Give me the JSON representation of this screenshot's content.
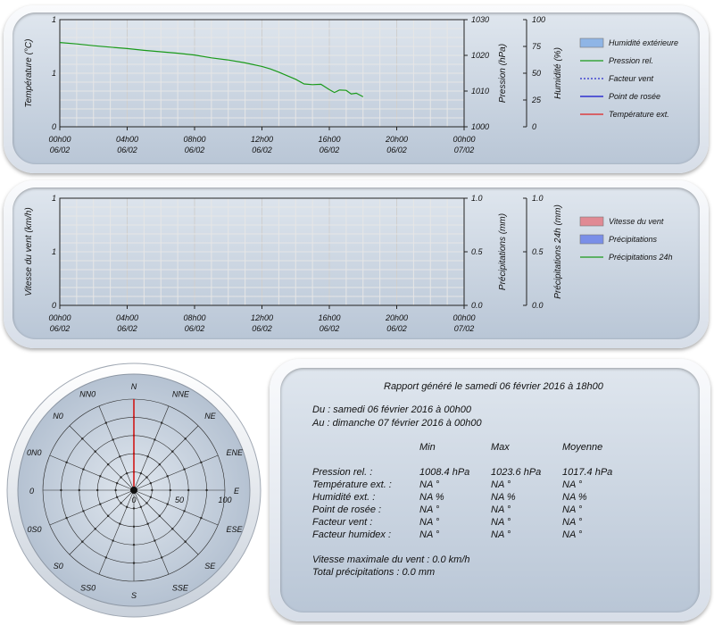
{
  "colors": {
    "humidity": "#8fb5e6",
    "pressure": "#1a9a1a",
    "wind_factor": "#2a2acc",
    "dew_point": "#1010cc",
    "temperature": "#e02020",
    "wind_speed": "#e08a94",
    "precip": "#7a8fe8",
    "precip24": "#1a9a1a",
    "rose_needle": "#d01818"
  },
  "chart_data": [
    {
      "type": "line",
      "x_tick_labels": [
        [
          "00h00",
          "06/02"
        ],
        [
          "04h00",
          "06/02"
        ],
        [
          "08h00",
          "06/02"
        ],
        [
          "12h00",
          "06/02"
        ],
        [
          "16h00",
          "06/02"
        ],
        [
          "20h00",
          "06/02"
        ],
        [
          "00h00",
          "07/02"
        ]
      ],
      "y_left": {
        "label": "Température (°C)",
        "ticks": [
          "1",
          "1",
          "0"
        ]
      },
      "y_mid": {
        "label": "Pression (hPa)",
        "ticks": [
          "1030",
          "1020",
          "1010",
          "1000"
        ],
        "range": [
          1000,
          1030
        ]
      },
      "y_right": {
        "label": "Humidité (%)",
        "ticks": [
          "100",
          "75",
          "50",
          "25",
          "0"
        ]
      },
      "grid": true,
      "legend_position": "right",
      "legend": [
        "Humidité extérieure",
        "Pression rel.",
        "Facteur vent",
        "Point de rosée",
        "Température ext."
      ],
      "series": [
        {
          "name": "Pression rel.",
          "axis": "y_mid",
          "x": [
            0,
            1,
            2,
            3,
            4,
            5,
            6,
            7,
            8,
            9,
            10,
            11,
            12,
            12.5,
            13,
            13.5,
            14,
            14.5,
            15,
            15.5,
            16,
            16.3,
            16.6,
            17,
            17.3,
            17.6,
            18
          ],
          "y": [
            1023.6,
            1023.2,
            1022.7,
            1022.3,
            1021.9,
            1021.4,
            1021.0,
            1020.6,
            1020.1,
            1019.3,
            1018.7,
            1017.9,
            1016.9,
            1016.2,
            1015.3,
            1014.3,
            1013.3,
            1012.0,
            1011.8,
            1011.9,
            1010.4,
            1009.6,
            1010.3,
            1010.2,
            1009.2,
            1009.4,
            1008.4
          ]
        }
      ]
    },
    {
      "type": "bar",
      "x_tick_labels": [
        [
          "00h00",
          "06/02"
        ],
        [
          "04h00",
          "06/02"
        ],
        [
          "08h00",
          "06/02"
        ],
        [
          "12h00",
          "06/02"
        ],
        [
          "16h00",
          "06/02"
        ],
        [
          "20h00",
          "06/02"
        ],
        [
          "00h00",
          "07/02"
        ]
      ],
      "y_left": {
        "label": "Vitesse du vent (km/h)",
        "ticks": [
          "1",
          "1",
          "0"
        ]
      },
      "y_mid": {
        "label": "Précipitations (mm)",
        "ticks": [
          "1.0",
          "0.5",
          "0.0"
        ]
      },
      "y_right": {
        "label": "Précipitations 24h (mm)",
        "ticks": [
          "1.0",
          "0.5",
          "0.0"
        ]
      },
      "grid": true,
      "legend_position": "right",
      "legend": [
        "Vitesse du vent",
        "Précipitations",
        "Précipitations 24h"
      ],
      "series": []
    },
    {
      "type": "radar",
      "directions": [
        "N",
        "NNE",
        "NE",
        "ENE",
        "E",
        "ESE",
        "SE",
        "SSE",
        "S",
        "SS0",
        "S0",
        "0S0",
        "0",
        "0N0",
        "N0",
        "NN0"
      ],
      "radial_ticks": [
        "0",
        "50",
        "100"
      ],
      "series": [
        {
          "direction": "N",
          "value": 100
        }
      ]
    }
  ],
  "report": {
    "title": "Rapport généré le samedi 06 février 2016 à 18h00",
    "from": "Du : samedi 06 février 2016 à 00h00",
    "to": "Au : dimanche 07 février 2016 à 00h00",
    "columns": [
      "Min",
      "Max",
      "Moyenne"
    ],
    "rows": [
      {
        "label": "Pression rel. :",
        "min": "1008.4 hPa",
        "max": "1023.6 hPa",
        "avg": "1017.4 hPa"
      },
      {
        "label": "Température ext. :",
        "min": "NA °",
        "max": "NA °",
        "avg": "NA °"
      },
      {
        "label": "Humidité ext. :",
        "min": "NA %",
        "max": "NA %",
        "avg": "NA %"
      },
      {
        "label": "Point de rosée :",
        "min": "NA °",
        "max": "NA °",
        "avg": "NA °"
      },
      {
        "label": "Facteur vent :",
        "min": "NA °",
        "max": "NA °",
        "avg": "NA °"
      },
      {
        "label": "Facteur humidex :",
        "min": "NA °",
        "max": "NA °",
        "avg": "NA °"
      }
    ],
    "max_wind": "Vitesse maximale du vent : 0.0 km/h",
    "total_precip": "Total précipitations : 0.0 mm"
  }
}
